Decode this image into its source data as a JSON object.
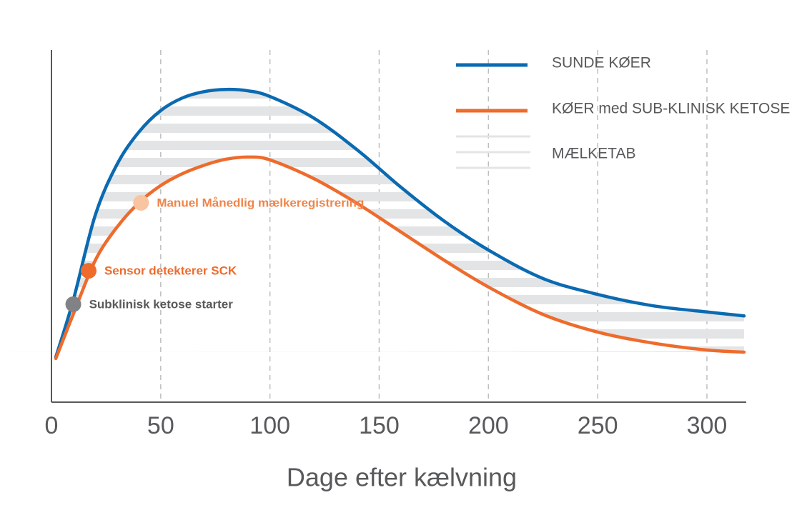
{
  "chart_data": {
    "type": "line",
    "x_label": "Dage efter kælvning",
    "xlim": [
      0,
      318
    ],
    "ylim": [
      0,
      100
    ],
    "xticks": [
      0,
      50,
      100,
      150,
      200,
      250,
      300
    ],
    "grid": true,
    "x": [
      2,
      10,
      20,
      30,
      40,
      50,
      60,
      70,
      80,
      90,
      100,
      120,
      140,
      160,
      180,
      200,
      225,
      250,
      275,
      300,
      317
    ],
    "series": [
      {
        "name": "SUNDE KØER",
        "color": "#0a6ab2",
        "values": [
          12.8,
          29,
          53,
          67.5,
          76.7,
          82.8,
          86.4,
          88.2,
          88.8,
          88.4,
          86.8,
          80.7,
          71.6,
          61,
          51.3,
          43.2,
          35.1,
          30.6,
          27.4,
          25.6,
          24.5
        ]
      },
      {
        "name": "KØER med SUB-KLINISK KETOSE",
        "color": "#ee6b2c",
        "values": [
          12.4,
          25,
          40.2,
          49.7,
          56.6,
          61.5,
          64.9,
          67.3,
          69,
          69.6,
          68.8,
          63.5,
          56.4,
          48.3,
          40.2,
          32.7,
          24.9,
          19.9,
          16.8,
          14.8,
          14.2
        ]
      }
    ],
    "area_label": "MÆLKETAB",
    "area_color": "#e3e4e5",
    "annotations": [
      {
        "text": "Subklinisk ketose starter",
        "x": 10,
        "y": 27.8,
        "color": "#808285",
        "text_color": "#58595b"
      },
      {
        "text": "Sensor detekterer SCK",
        "x": 17,
        "y": 37.3,
        "color": "#ee6b2c",
        "text_color": "#ee6b2c"
      },
      {
        "text": "Manuel Månedlig mælkeregistrering",
        "x": 41,
        "y": 56.6,
        "color": "#f9c4a0",
        "text_color": "#f0844a"
      }
    ]
  }
}
